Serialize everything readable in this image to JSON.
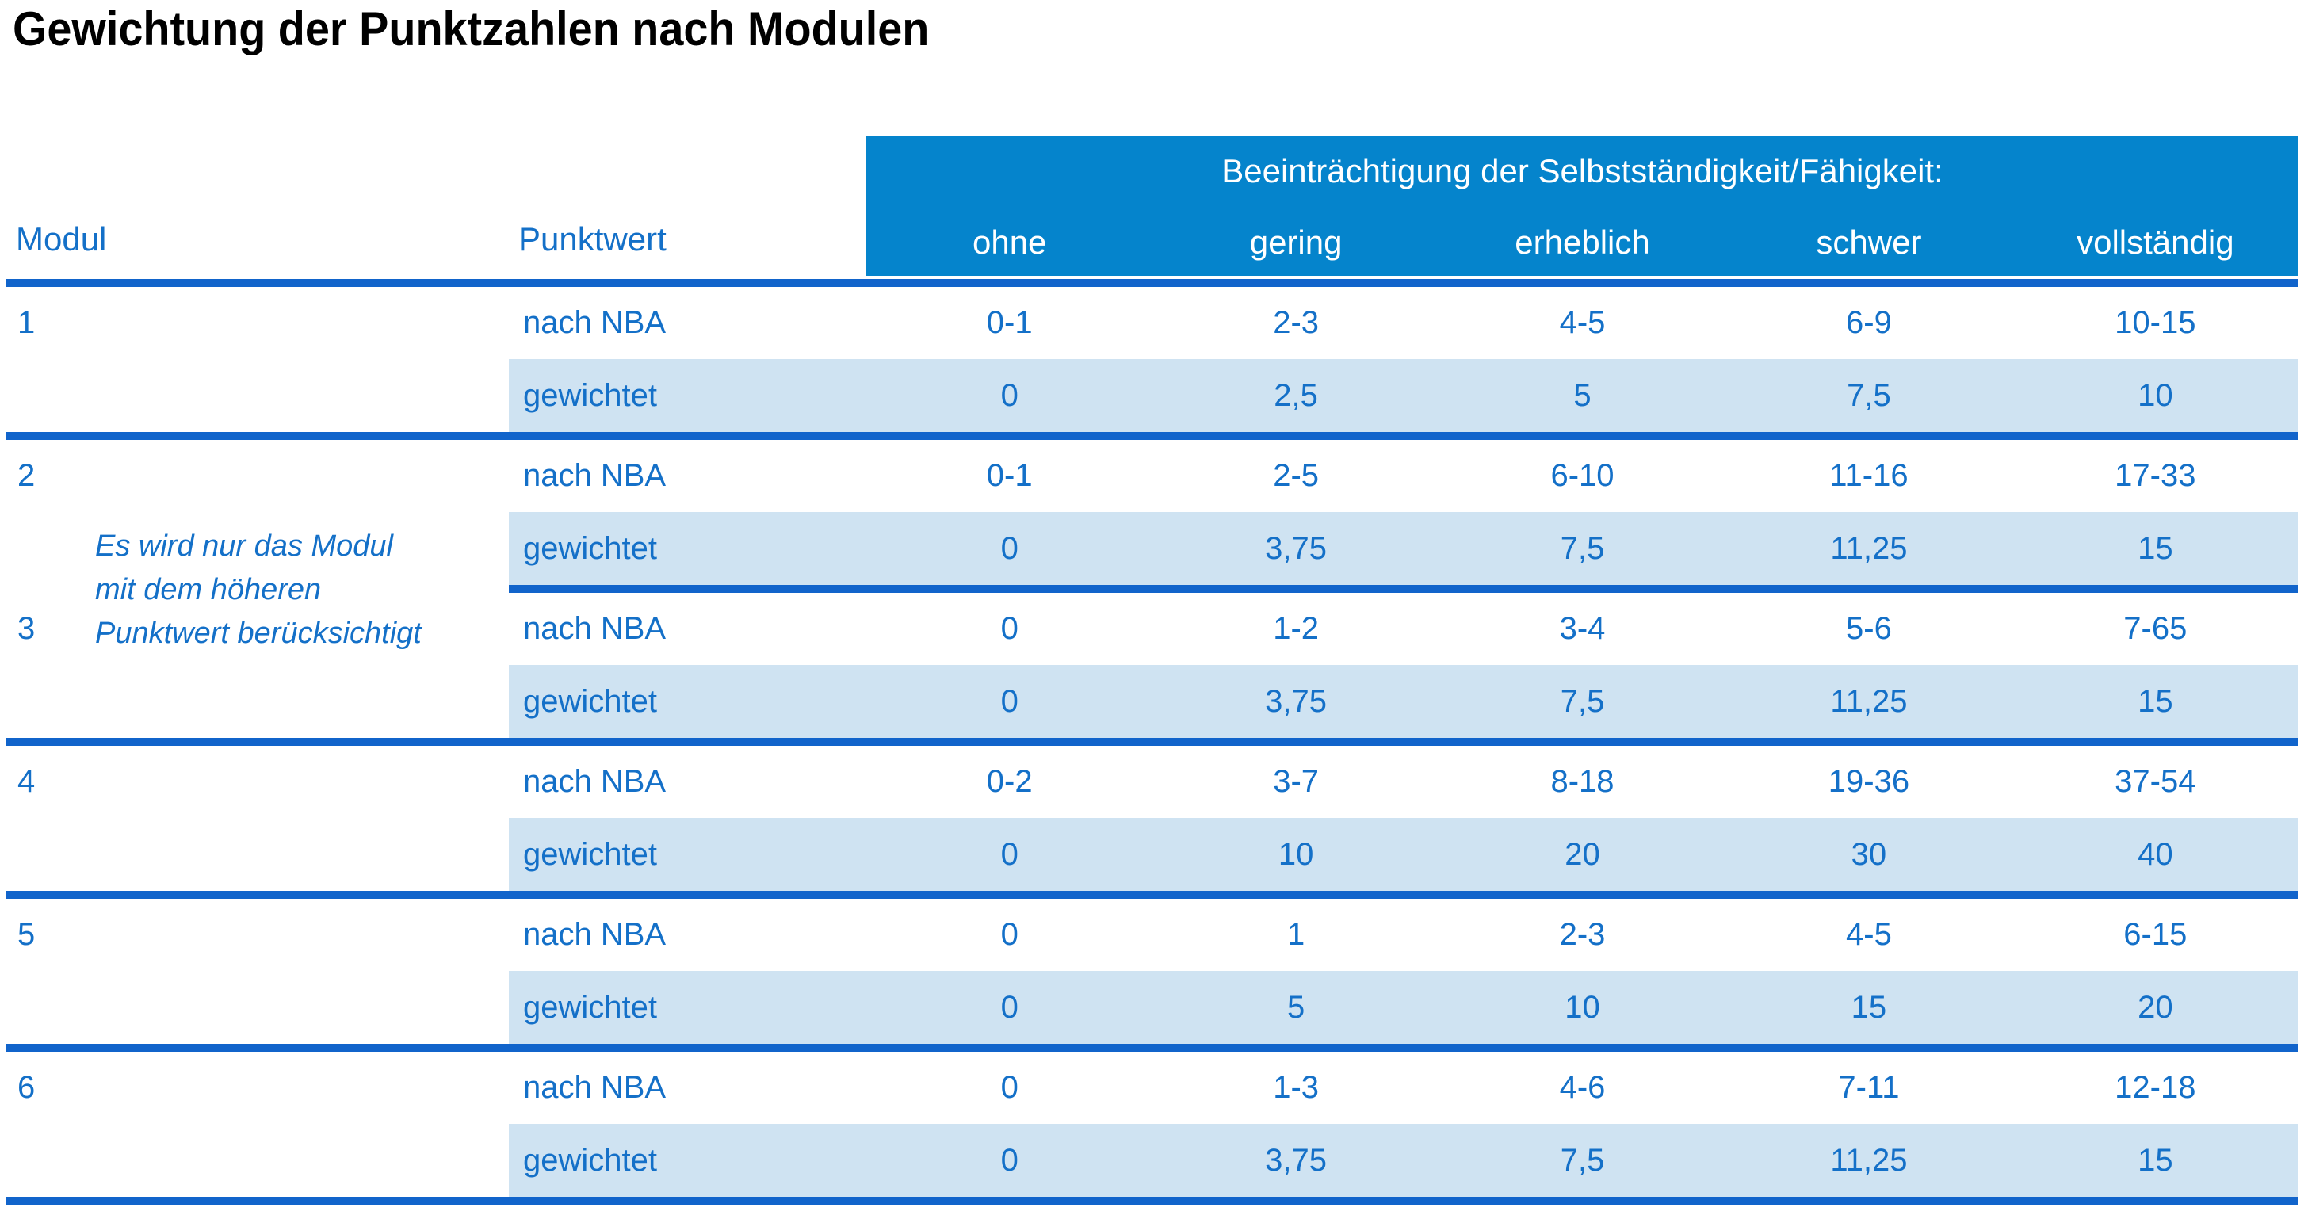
{
  "title": "Gewichtung der Punktzahlen nach Modulen",
  "table": {
    "header": {
      "modul_label": "Modul",
      "punktwert_label": "Punktwert",
      "group_label": "Beeinträchtigung der Selbstständigkeit/Fähigkeit:",
      "severity_columns": [
        "ohne",
        "gering",
        "erheblich",
        "schwer",
        "vollständig"
      ]
    },
    "row_labels": {
      "nba": "nach NBA",
      "weighted": "gewichtet"
    },
    "note": {
      "line1": "Es wird nur das Modul",
      "line2": "mit dem höheren",
      "line3": "Punktwert berücksichtigt"
    },
    "modules": [
      {
        "id": "1",
        "nba": [
          "0-1",
          "2-3",
          "4-5",
          "6-9",
          "10-15"
        ],
        "weighted": [
          "0",
          "2,5",
          "5",
          "7,5",
          "10"
        ]
      },
      {
        "id": "2",
        "nba": [
          "0-1",
          "2-5",
          "6-10",
          "11-16",
          "17-33"
        ],
        "weighted": [
          "0",
          "3,75",
          "7,5",
          "11,25",
          "15"
        ]
      },
      {
        "id": "3",
        "nba": [
          "0",
          "1-2",
          "3-4",
          "5-6",
          "7-65"
        ],
        "weighted": [
          "0",
          "3,75",
          "7,5",
          "11,25",
          "15"
        ]
      },
      {
        "id": "4",
        "nba": [
          "0-2",
          "3-7",
          "8-18",
          "19-36",
          "37-54"
        ],
        "weighted": [
          "0",
          "10",
          "20",
          "30",
          "40"
        ]
      },
      {
        "id": "5",
        "nba": [
          "0",
          "1",
          "2-3",
          "4-5",
          "6-15"
        ],
        "weighted": [
          "0",
          "5",
          "10",
          "15",
          "20"
        ]
      },
      {
        "id": "6",
        "nba": [
          "0",
          "1-3",
          "4-6",
          "7-11",
          "12-18"
        ],
        "weighted": [
          "0",
          "3,75",
          "7,5",
          "11,25",
          "15"
        ]
      }
    ],
    "colors": {
      "header_bg": "#0584cc",
      "separator": "#1164cb",
      "text_blue": "#1470c8",
      "shaded_row": "#cfe3f2",
      "title_text": "#000000"
    }
  }
}
